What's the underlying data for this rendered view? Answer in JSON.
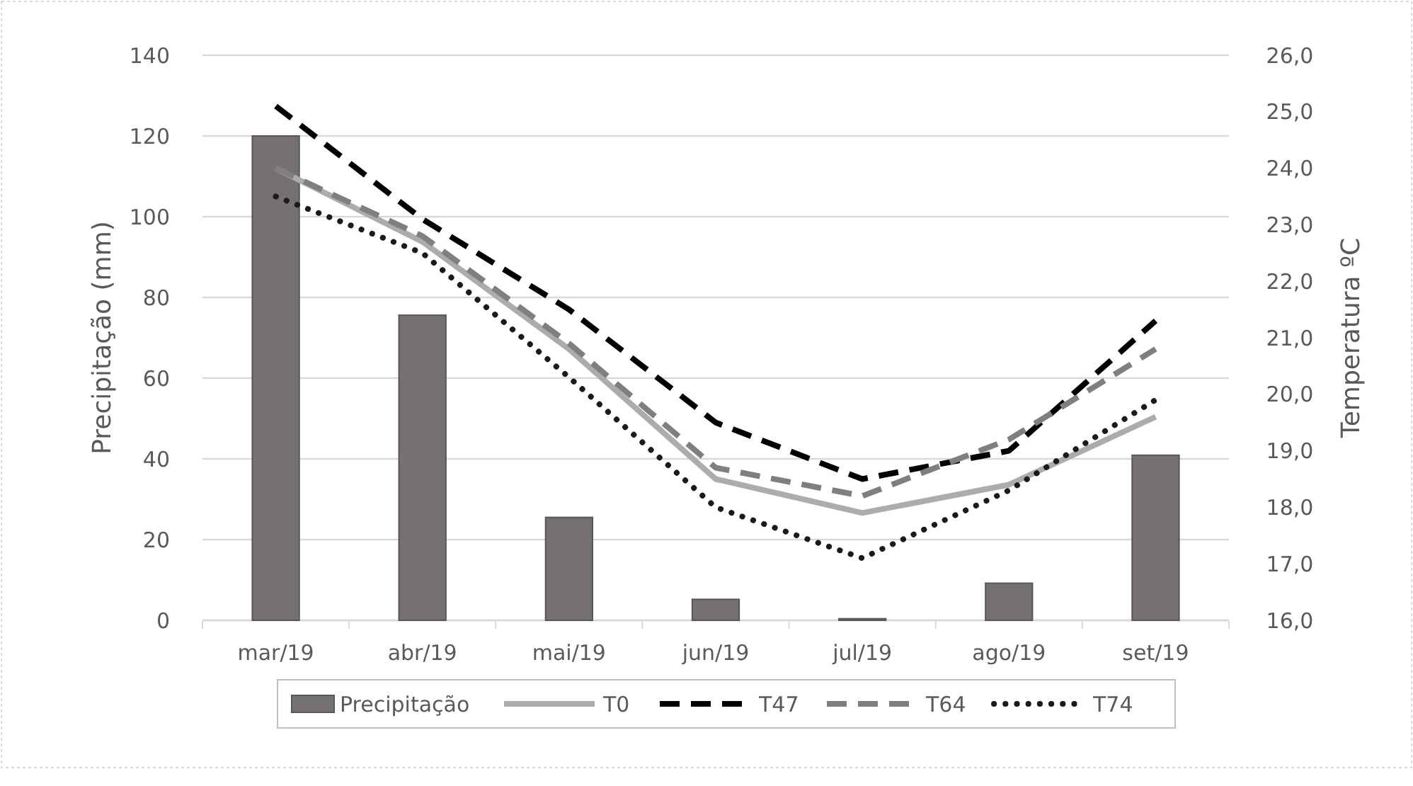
{
  "chart_data": {
    "type": "bar",
    "ylabel": "Precipitação (mm)",
    "y2label": "Temperatura ºC",
    "categories": [
      "mar/19",
      "abr/19",
      "mai/19",
      "jun/19",
      "jul/19",
      "ago/19",
      "set/19"
    ],
    "series": [
      {
        "name": "Precipitação",
        "color": "#767171",
        "values": [
          120,
          75.6,
          25.5,
          5.2,
          0.4,
          9.2,
          40.9
        ]
      },
      {
        "name": "T0",
        "type": "line",
        "axis": "y2",
        "color": "#afabab",
        "line_style": "solid",
        "values": [
          24.0,
          22.7,
          20.8,
          18.5,
          17.9,
          18.4,
          19.6
        ]
      },
      {
        "name": "T47",
        "type": "line",
        "axis": "y2",
        "color": "#000000",
        "line_style": "dashed",
        "values": [
          25.1,
          23.1,
          21.5,
          19.5,
          18.5,
          19.0,
          21.3
        ]
      },
      {
        "name": "T64",
        "type": "line",
        "axis": "y2",
        "color": "#7f7f7f",
        "line_style": "dashed",
        "values": [
          24.0,
          22.8,
          20.9,
          18.7,
          18.2,
          19.2,
          20.8
        ]
      },
      {
        "name": "T74",
        "type": "line",
        "axis": "y2",
        "color": "#1a1a1a",
        "line_style": "dotted",
        "values": [
          23.5,
          22.5,
          20.3,
          18.0,
          17.1,
          18.3,
          19.9
        ]
      }
    ],
    "ylim": [
      0,
      140
    ],
    "yticks": [
      0,
      20,
      40,
      60,
      80,
      100,
      120,
      140
    ],
    "y2lim": [
      16,
      26
    ],
    "y2ticks": [
      {
        "value": 16,
        "label": "16,0"
      },
      {
        "value": 17,
        "label": "17,0"
      },
      {
        "value": 18,
        "label": "18,0"
      },
      {
        "value": 19,
        "label": "19,0"
      },
      {
        "value": 20,
        "label": "20,0"
      },
      {
        "value": 21,
        "label": "21,0"
      },
      {
        "value": 22,
        "label": "22,0"
      },
      {
        "value": 23,
        "label": "23,0"
      },
      {
        "value": 24,
        "label": "24,0"
      },
      {
        "value": 25,
        "label": "25,0"
      },
      {
        "value": 26,
        "label": "26,0"
      }
    ],
    "grid": "y",
    "legend": "bottom",
    "marker": "none"
  }
}
